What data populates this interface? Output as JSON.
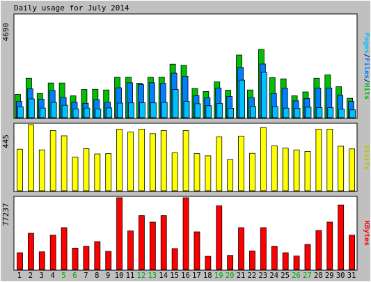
{
  "chart_data": [
    {
      "type": "bar",
      "title": "Daily usage for July 2014",
      "ymax_label": "4690",
      "side_label": {
        "parts": [
          "Pages",
          "/",
          "Files",
          "/",
          "Hits"
        ]
      },
      "categories": [
        "1",
        "2",
        "3",
        "4",
        "5",
        "6",
        "7",
        "8",
        "9",
        "10",
        "11",
        "12",
        "13",
        "14",
        "15",
        "16",
        "17",
        "18",
        "19",
        "20",
        "21",
        "22",
        "23",
        "24",
        "25",
        "26",
        "27",
        "28",
        "29",
        "30",
        "31"
      ],
      "weekend_days": [
        "5",
        "6",
        "12",
        "13",
        "19",
        "20",
        "26",
        "27"
      ],
      "ylim": [
        0,
        4690
      ],
      "series": [
        {
          "name": "Hits",
          "values": [
            1070,
            1810,
            1110,
            1590,
            1590,
            1000,
            1290,
            1300,
            1270,
            1850,
            1850,
            1580,
            1850,
            1850,
            2450,
            2400,
            1340,
            1200,
            1640,
            1260,
            2870,
            1270,
            3130,
            1830,
            1780,
            1000,
            1180,
            1810,
            1960,
            1420,
            890
          ]
        },
        {
          "name": "Files",
          "values": [
            750,
            1320,
            850,
            1250,
            930,
            700,
            660,
            830,
            710,
            1370,
            1600,
            1520,
            1600,
            1570,
            2040,
            1900,
            1010,
            910,
            1360,
            970,
            2300,
            920,
            2460,
            1110,
            1350,
            770,
            880,
            1360,
            1360,
            1030,
            750
          ]
        },
        {
          "name": "Pages",
          "values": [
            500,
            860,
            440,
            700,
            570,
            400,
            440,
            400,
            450,
            670,
            680,
            690,
            680,
            700,
            1290,
            750,
            640,
            550,
            650,
            430,
            1720,
            520,
            2080,
            510,
            440,
            430,
            480,
            460,
            460,
            390,
            360
          ]
        }
      ],
      "colors": {
        "Hits": "#00c000",
        "Files": "#0080ff",
        "Pages": "#00c0ff",
        "Sep": "#ffffff"
      }
    },
    {
      "type": "bar",
      "ymax_label": "445",
      "side_label": {
        "parts": [
          "Visits"
        ]
      },
      "categories": [
        "1",
        "2",
        "3",
        "4",
        "5",
        "6",
        "7",
        "8",
        "9",
        "10",
        "11",
        "12",
        "13",
        "14",
        "15",
        "16",
        "17",
        "18",
        "19",
        "20",
        "21",
        "22",
        "23",
        "24",
        "25",
        "26",
        "27",
        "28",
        "29",
        "30",
        "31"
      ],
      "ylim": [
        0,
        445
      ],
      "series": [
        {
          "name": "Visits",
          "values": [
            280,
            445,
            275,
            405,
            370,
            226,
            283,
            248,
            250,
            415,
            395,
            415,
            385,
            405,
            255,
            405,
            250,
            235,
            362,
            210,
            368,
            252,
            425,
            303,
            287,
            275,
            265,
            415,
            415,
            300,
            282
          ]
        }
      ],
      "colors": {
        "Visits": "#ffff00"
      }
    },
    {
      "type": "bar",
      "ymax_label": "77237",
      "side_label": {
        "parts": [
          "KBytes"
        ]
      },
      "categories": [
        "1",
        "2",
        "3",
        "4",
        "5",
        "6",
        "7",
        "8",
        "9",
        "10",
        "11",
        "12",
        "13",
        "14",
        "15",
        "16",
        "17",
        "18",
        "19",
        "20",
        "21",
        "22",
        "23",
        "24",
        "25",
        "26",
        "27",
        "28",
        "29",
        "30",
        "31"
      ],
      "ylim": [
        0,
        77237
      ],
      "series": [
        {
          "name": "KBytes",
          "values": [
            18000,
            39000,
            19000,
            37000,
            45000,
            23000,
            25000,
            30000,
            19500,
            77237,
            41500,
            58000,
            51000,
            58000,
            22500,
            77237,
            40500,
            14200,
            68500,
            15200,
            45000,
            20000,
            45000,
            25000,
            18000,
            14500,
            27000,
            42000,
            51000,
            69500,
            37000
          ]
        }
      ],
      "colors": {
        "KBytes": "#ff0000"
      }
    }
  ],
  "colors": {
    "frame_bg": "#c0c0c0",
    "plot_bg": "#ffffff",
    "weekday": "#000000",
    "weekend": "#00a000",
    "ks_pages": "#00c0ff",
    "ks_files": "#0080ff",
    "ks_hits": "#00c000",
    "ks_sep": "#000080",
    "visits_label": "#c0c000",
    "kbytes_label": "#ff0000"
  }
}
